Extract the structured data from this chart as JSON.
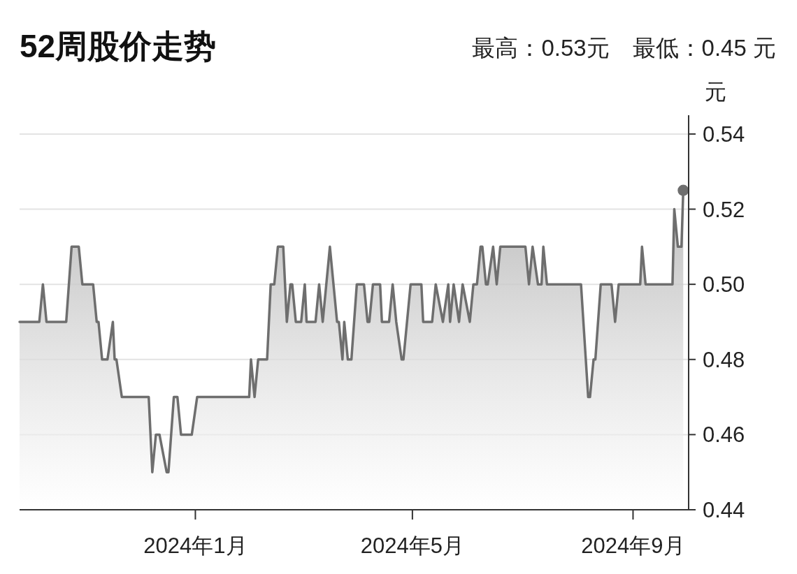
{
  "chart_data": {
    "type": "area",
    "title": "52周股价走势",
    "subtitle": "最高：0.53元　最低：0.45 元",
    "ylabel": "元",
    "xlim": [
      "2023-09-25",
      "2024-10-02"
    ],
    "ylim": [
      0.44,
      0.545
    ],
    "xticks": [
      {
        "value": "2024-01-01",
        "label": "2024年1月"
      },
      {
        "value": "2024-05-01",
        "label": "2024年5月"
      },
      {
        "value": "2024-09-01",
        "label": "2024年9月"
      }
    ],
    "yticks": [
      {
        "value": 0.44,
        "label": "0.44"
      },
      {
        "value": 0.46,
        "label": "0.46"
      },
      {
        "value": 0.48,
        "label": "0.48"
      },
      {
        "value": 0.5,
        "label": "0.50"
      },
      {
        "value": 0.52,
        "label": "0.52"
      },
      {
        "value": 0.54,
        "label": "0.54"
      }
    ],
    "grid": "y",
    "series": [
      {
        "color": "#6e6e6e",
        "x": [
          "2023-09-25",
          "2023-10-06",
          "2023-10-08",
          "2023-10-10",
          "2023-10-21",
          "2023-10-24",
          "2023-10-28",
          "2023-10-30",
          "2023-11-05",
          "2023-11-07",
          "2023-11-08",
          "2023-11-10",
          "2023-11-13",
          "2023-11-16",
          "2023-11-17",
          "2023-11-18",
          "2023-11-21",
          "2023-12-06",
          "2023-12-08",
          "2023-12-10",
          "2023-12-12",
          "2023-12-16",
          "2023-12-17",
          "2023-12-20",
          "2023-12-22",
          "2023-12-24",
          "2023-12-30",
          "2024-01-02",
          "2024-01-31",
          "2024-02-01",
          "2024-02-03",
          "2024-02-05",
          "2024-02-10",
          "2024-02-12",
          "2024-02-14",
          "2024-02-16",
          "2024-02-19",
          "2024-02-21",
          "2024-02-23",
          "2024-02-24",
          "2024-02-26",
          "2024-02-29",
          "2024-03-02",
          "2024-03-03",
          "2024-03-08",
          "2024-03-10",
          "2024-03-12",
          "2024-03-16",
          "2024-03-20",
          "2024-03-21",
          "2024-03-23",
          "2024-03-24",
          "2024-03-26",
          "2024-03-28",
          "2024-03-31",
          "2024-04-04",
          "2024-04-06",
          "2024-04-07",
          "2024-04-09",
          "2024-04-13",
          "2024-04-14",
          "2024-04-18",
          "2024-04-20",
          "2024-04-22",
          "2024-04-25",
          "2024-04-26",
          "2024-04-30",
          "2024-05-06",
          "2024-05-07",
          "2024-05-12",
          "2024-05-14",
          "2024-05-18",
          "2024-05-21",
          "2024-05-22",
          "2024-05-24",
          "2024-05-27",
          "2024-05-29",
          "2024-06-02",
          "2024-06-04",
          "2024-06-06",
          "2024-06-08",
          "2024-06-09",
          "2024-06-11",
          "2024-06-12",
          "2024-06-15",
          "2024-06-17",
          "2024-06-19",
          "2024-07-03",
          "2024-07-05",
          "2024-07-07",
          "2024-07-10",
          "2024-07-12",
          "2024-07-13",
          "2024-07-15",
          "2024-08-03",
          "2024-08-07",
          "2024-08-08",
          "2024-08-10",
          "2024-08-11",
          "2024-08-14",
          "2024-08-20",
          "2024-08-22",
          "2024-08-24",
          "2024-09-05",
          "2024-09-06",
          "2024-09-08",
          "2024-09-23",
          "2024-09-24",
          "2024-09-26",
          "2024-09-28",
          "2024-09-29"
        ],
        "values": [
          0.49,
          0.49,
          0.5,
          0.49,
          0.49,
          0.51,
          0.51,
          0.5,
          0.5,
          0.49,
          0.49,
          0.48,
          0.48,
          0.49,
          0.48,
          0.48,
          0.47,
          0.47,
          0.45,
          0.46,
          0.46,
          0.45,
          0.45,
          0.47,
          0.47,
          0.46,
          0.46,
          0.47,
          0.47,
          0.48,
          0.47,
          0.48,
          0.48,
          0.5,
          0.5,
          0.51,
          0.51,
          0.49,
          0.5,
          0.5,
          0.49,
          0.49,
          0.5,
          0.49,
          0.49,
          0.5,
          0.49,
          0.51,
          0.49,
          0.49,
          0.48,
          0.49,
          0.48,
          0.48,
          0.5,
          0.5,
          0.49,
          0.49,
          0.5,
          0.5,
          0.49,
          0.49,
          0.5,
          0.49,
          0.48,
          0.48,
          0.5,
          0.5,
          0.49,
          0.49,
          0.5,
          0.49,
          0.5,
          0.49,
          0.5,
          0.49,
          0.5,
          0.49,
          0.5,
          0.5,
          0.51,
          0.51,
          0.5,
          0.5,
          0.51,
          0.5,
          0.51,
          0.51,
          0.5,
          0.51,
          0.5,
          0.5,
          0.51,
          0.5,
          0.5,
          0.47,
          0.47,
          0.48,
          0.48,
          0.5,
          0.5,
          0.49,
          0.5,
          0.5,
          0.51,
          0.5,
          0.5,
          0.52,
          0.51,
          0.51,
          0.525
        ]
      },
      {
        "type": "scatter",
        "color": "#6e6e6e",
        "marker": "circle",
        "x": [
          "2024-09-29"
        ],
        "values": [
          0.525
        ]
      }
    ]
  }
}
